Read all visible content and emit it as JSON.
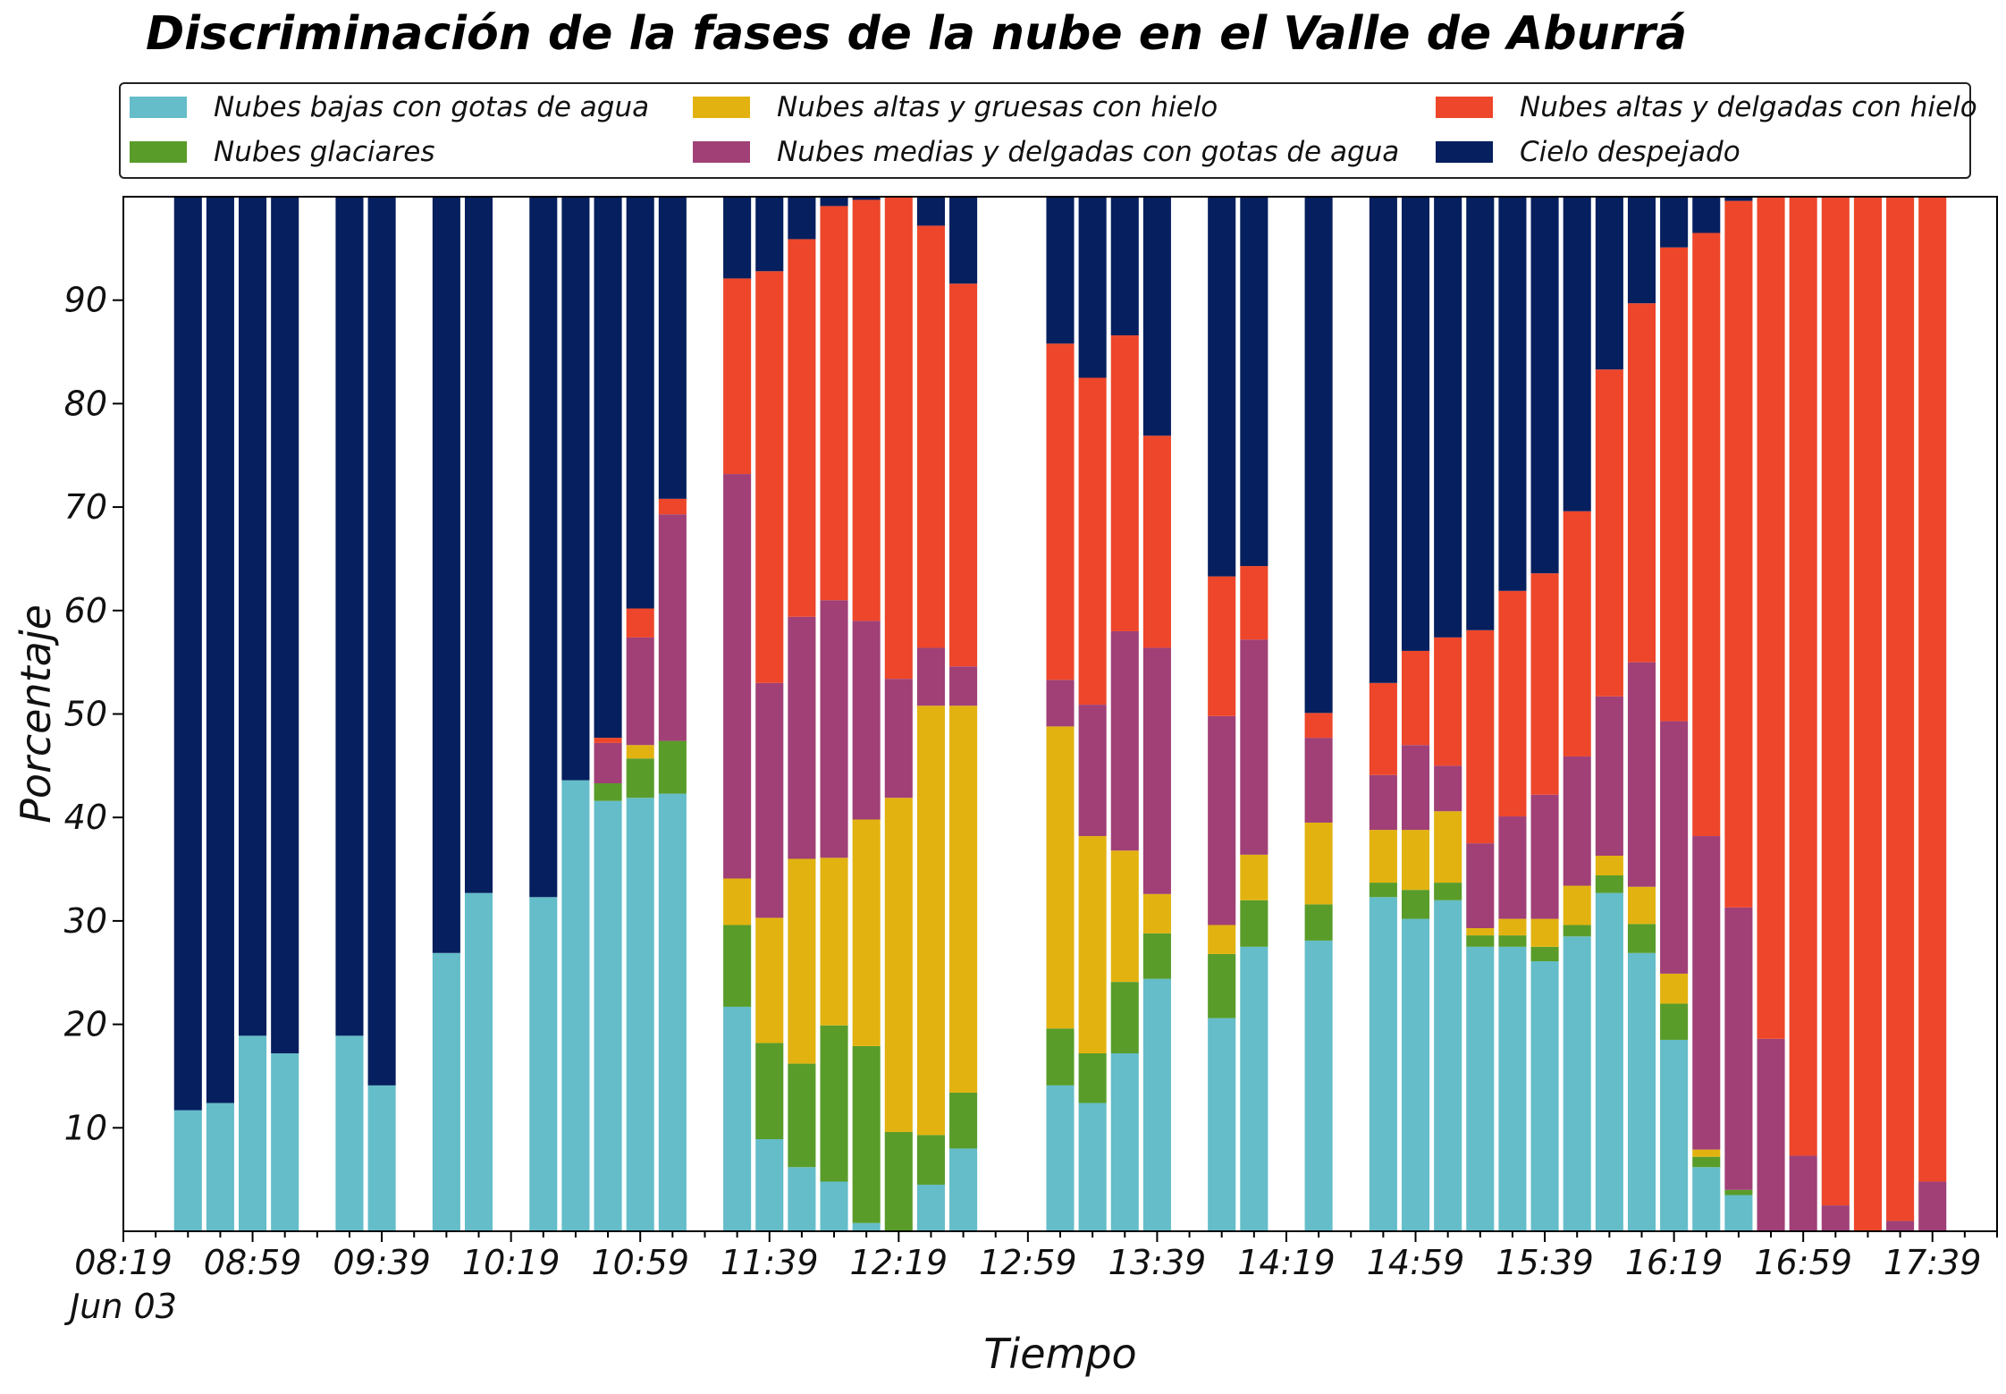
{
  "chart_data": {
    "type": "bar",
    "stacked": true,
    "title": "Discriminación de la fases de la nube en el Valle de Aburrá",
    "xlabel": "Tiempo",
    "ylabel": "Porcentaje",
    "ylim": [
      0,
      100
    ],
    "xlim": [
      "08:19",
      "17:59"
    ],
    "x_tick_labels": [
      "08:19",
      "08:59",
      "09:39",
      "10:19",
      "10:59",
      "11:39",
      "12:19",
      "12:59",
      "13:39",
      "14:19",
      "14:59",
      "15:39",
      "16:19",
      "16:59",
      "17:39"
    ],
    "x_tick_sublabel": "Jun 03",
    "y_ticks": [
      10,
      20,
      30,
      40,
      50,
      60,
      70,
      80,
      90
    ],
    "grid": false,
    "legend_position": "top",
    "times": [
      "08:39",
      "08:49",
      "08:59",
      "09:09",
      "09:29",
      "09:39",
      "09:59",
      "10:09",
      "10:29",
      "10:39",
      "10:49",
      "10:59",
      "11:09",
      "11:29",
      "11:39",
      "11:49",
      "11:59",
      "12:09",
      "12:19",
      "12:29",
      "12:39",
      "13:09",
      "13:19",
      "13:29",
      "13:39",
      "13:59",
      "14:09",
      "14:29",
      "14:49",
      "14:59",
      "15:09",
      "15:19",
      "15:29",
      "15:39",
      "15:49",
      "15:59",
      "16:09",
      "16:19",
      "16:29",
      "16:39",
      "16:49",
      "16:59",
      "17:09",
      "17:19",
      "17:29",
      "17:39",
      "17:49"
    ],
    "series": [
      {
        "name": "Nubes bajas con gotas de agua",
        "color": "#64bdc9",
        "values": [
          11.7,
          12.4,
          18.9,
          17.2,
          18.9,
          14.1,
          26.9,
          32.7,
          32.3,
          43.6,
          41.6,
          41.9,
          42.3,
          21.7,
          8.9,
          6.2,
          4.8,
          0.8,
          0,
          4.5,
          8,
          14.1,
          12.4,
          17.2,
          24.4,
          20.6,
          27.5,
          28.1,
          32.3,
          30.2,
          32,
          27.5,
          27.5,
          26.1,
          28.5,
          32.7,
          26.9,
          18.5,
          6.2,
          3.5,
          0,
          0,
          0,
          0,
          0,
          0,
          0
        ]
      },
      {
        "name": "Nubes glaciares",
        "color": "#599c2a",
        "values": [
          0,
          0,
          0,
          0,
          0,
          0,
          0,
          0,
          0,
          0,
          1.7,
          3.8,
          5.1,
          7.9,
          9.3,
          10,
          15.1,
          17.1,
          9.6,
          4.8,
          5.4,
          5.5,
          4.8,
          6.9,
          4.4,
          6.2,
          4.5,
          3.5,
          1.4,
          2.8,
          1.7,
          1.1,
          1.1,
          1.4,
          1.1,
          1.7,
          2.8,
          3.5,
          1,
          0.5,
          0,
          0,
          0,
          0,
          0,
          0,
          0
        ]
      },
      {
        "name": "Nubes altas y gruesas con hielo",
        "color": "#e2b310",
        "values": [
          0,
          0,
          0,
          0,
          0,
          0,
          0,
          0,
          0,
          0,
          0,
          1.3,
          0,
          4.5,
          12.1,
          19.8,
          16.2,
          21.9,
          32.3,
          41.5,
          37.4,
          29.2,
          21,
          12.7,
          3.8,
          2.8,
          4.4,
          7.9,
          5.1,
          5.8,
          6.9,
          0.7,
          1.6,
          2.7,
          3.8,
          1.9,
          3.6,
          2.9,
          0.7,
          0,
          0,
          0,
          0,
          0,
          0,
          0,
          0
        ]
      },
      {
        "name": "Nubes medias y delgadas con gotas de agua",
        "color": "#a04076",
        "values": [
          0,
          0,
          0,
          0,
          0,
          0,
          0,
          0,
          0,
          0,
          3.9,
          10.4,
          21.9,
          39.1,
          22.7,
          23.4,
          24.9,
          19.2,
          11.5,
          5.6,
          3.8,
          4.5,
          12.7,
          21.2,
          23.8,
          20.2,
          20.8,
          8.2,
          5.3,
          8.2,
          4.4,
          8.2,
          9.9,
          12,
          12.5,
          15.4,
          21.7,
          24.4,
          30.3,
          27.3,
          18.6,
          7.3,
          2.5,
          0,
          1,
          4.8,
          0
        ]
      },
      {
        "name": "Nubes altas y delgadas con hielo",
        "color": "#ed462a",
        "values": [
          0,
          0,
          0,
          0,
          0,
          0,
          0,
          0,
          0,
          0,
          0.5,
          2.8,
          1.5,
          18.9,
          39.8,
          36.5,
          38.1,
          40.7,
          46.7,
          40.8,
          37,
          32.5,
          31.6,
          28.6,
          20.5,
          13.5,
          7.1,
          2.4,
          8.9,
          9.1,
          12.4,
          20.6,
          21.8,
          21.4,
          23.7,
          31.6,
          34.7,
          45.8,
          58.3,
          68.3,
          81.4,
          92.7,
          97.5,
          100,
          99,
          95.2,
          0
        ]
      },
      {
        "name": "Cielo despejado",
        "color": "#061f5e",
        "values": [
          88.3,
          87.6,
          81.1,
          82.8,
          81.1,
          85.9,
          73.1,
          67.3,
          67.7,
          56.4,
          52.3,
          39.8,
          29.2,
          7.9,
          7.2,
          4.1,
          0.9,
          0.3,
          0,
          2.8,
          8.4,
          14.2,
          17.5,
          13.4,
          23.1,
          36.7,
          35.7,
          49.9,
          47,
          43.9,
          42.6,
          41.9,
          38.1,
          36.4,
          30.4,
          16.7,
          10.3,
          4.9,
          3.5,
          0.4,
          0,
          0,
          0,
          0,
          0,
          0,
          0
        ]
      }
    ]
  }
}
